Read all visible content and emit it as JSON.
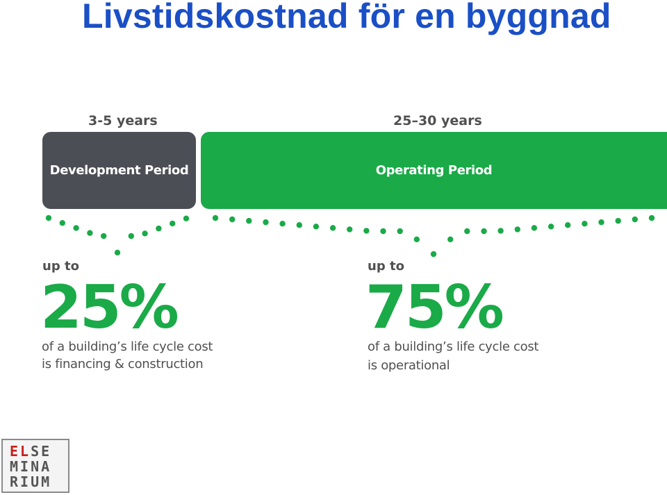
{
  "title": "Livstidskostnad för en byggnad",
  "development": {
    "duration": "3-5 years",
    "label": "Development Period",
    "up_to": "up to",
    "percent": "25%",
    "line1": "of a building’s life cycle cost",
    "line2": "is financing & construction"
  },
  "operating": {
    "duration": "25–30 years",
    "label": "Operating Period",
    "up_to": "up to",
    "percent": "75%",
    "line1": "of a building’s life cycle cost",
    "line2": "is operational"
  },
  "logo": {
    "row1_red": "EL",
    "row1_rest": "SE",
    "row2": "MINA",
    "row3": "RIUM"
  },
  "colors": {
    "title": "#1a4fc6",
    "development": "#4b4e54",
    "operating": "#1aaa48",
    "dots": "#1aaa48"
  }
}
